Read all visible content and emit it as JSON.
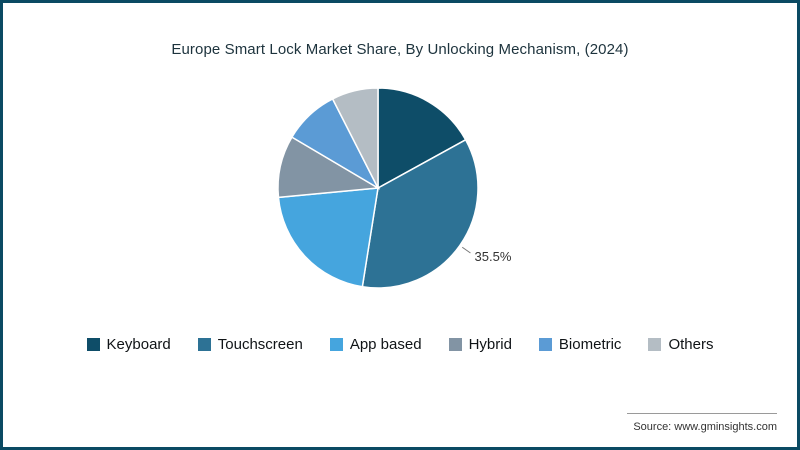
{
  "frame": {
    "border_color": "#0b4a63"
  },
  "title": "Europe Smart Lock Market Share, By Unlocking Mechanism, (2024)",
  "source": "Source: www.gminsights.com",
  "chart_data": {
    "type": "pie",
    "title": "Europe Smart Lock Market Share, By Unlocking Mechanism, (2024)",
    "start_angle_deg": 0,
    "direction": "clockwise",
    "legend_position": "bottom",
    "series": [
      {
        "name": "Keyboard",
        "value": 17,
        "color": "#0e4d68"
      },
      {
        "name": "Touchscreen",
        "value": 35.5,
        "color": "#2d7295"
      },
      {
        "name": "App based",
        "value": 21,
        "color": "#45a5de"
      },
      {
        "name": "Hybrid",
        "value": 10,
        "color": "#8294a4"
      },
      {
        "name": "Biometric",
        "value": 9,
        "color": "#5b9bd5"
      },
      {
        "name": "Others",
        "value": 7.5,
        "color": "#b4bdc4"
      }
    ],
    "data_labels": [
      {
        "series_index": 1,
        "text": "35.5%"
      }
    ]
  }
}
